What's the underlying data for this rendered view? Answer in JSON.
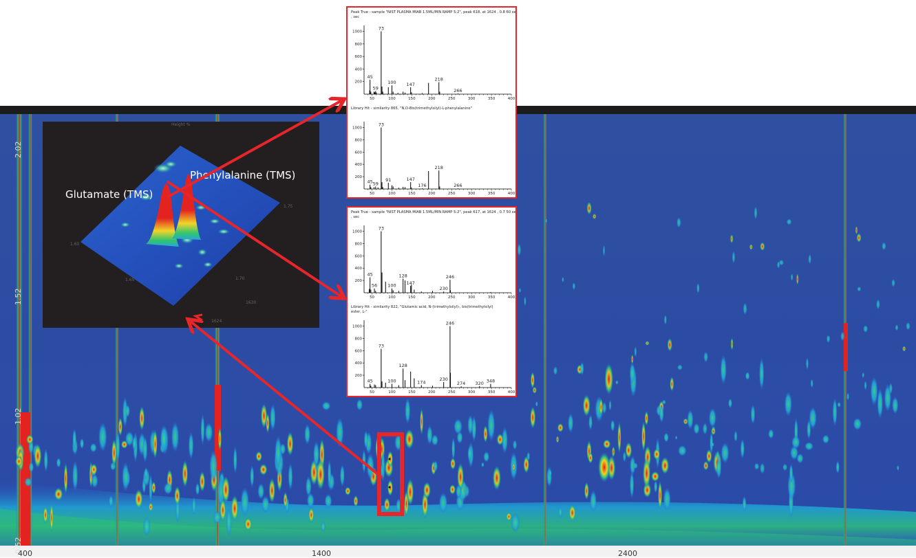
{
  "figure": {
    "label_glutamate": "Glutamate (TMS)",
    "label_phenylalanine": "Phenylalanine (TMS)",
    "y_axis_ticks": [
      "0.52",
      "1.02",
      "1.52",
      "2.02"
    ],
    "x_axis_ticks": [
      "400",
      "1400",
      "2400"
    ],
    "inset_3d_faint_labels": [
      "Height %",
      "1.75",
      "1.60",
      "1.65",
      "1.70",
      "1624",
      "1630"
    ]
  },
  "chart_data": [
    {
      "type": "bar",
      "panel": "phenylalanine_peak_true",
      "title": "Peak True - sample \"NIST PLASMA MIAB 1.5ML/MIN RAMP 5:2\", peak 618, at 1624 , 0.8 60 sec , sec",
      "x_ticks": [
        "50",
        "100",
        "150",
        "200",
        "250",
        "300",
        "350",
        "400"
      ],
      "y_ticks": [
        "200",
        "400",
        "600",
        "800",
        "1000"
      ],
      "xlim": [
        30,
        400
      ],
      "ylim": [
        0,
        1050
      ],
      "x": [
        44,
        45,
        47,
        55,
        57,
        59,
        61,
        73,
        75,
        77,
        91,
        100,
        103,
        115,
        128,
        133,
        147,
        149,
        176,
        192,
        218,
        220,
        266
      ],
      "values": [
        60,
        230,
        40,
        40,
        30,
        50,
        25,
        1000,
        120,
        40,
        110,
        140,
        40,
        20,
        40,
        25,
        110,
        30,
        15,
        180,
        190,
        40,
        10
      ],
      "peak_labels": [
        {
          "x": 45,
          "label": "45"
        },
        {
          "x": 59,
          "label": "59"
        },
        {
          "x": 73,
          "label": "73"
        },
        {
          "x": 100,
          "label": "100"
        },
        {
          "x": 147,
          "label": "147"
        },
        {
          "x": 218,
          "label": "218"
        },
        {
          "x": 266,
          "label": "266"
        }
      ]
    },
    {
      "type": "bar",
      "panel": "phenylalanine_library_hit",
      "title": "Library Hit - similarity 865, \"N,O-Bis(trimethylsilyl)-L-phenylalanine\"",
      "x_ticks": [
        "50",
        "100",
        "150",
        "200",
        "250",
        "300",
        "350",
        "400"
      ],
      "y_ticks": [
        "200",
        "400",
        "600",
        "800",
        "1000"
      ],
      "xlim": [
        30,
        400
      ],
      "ylim": [
        0,
        1050
      ],
      "x": [
        45,
        47,
        55,
        59,
        65,
        73,
        75,
        77,
        91,
        100,
        103,
        117,
        128,
        133,
        147,
        149,
        176,
        192,
        218,
        220,
        266
      ],
      "values": [
        70,
        30,
        30,
        40,
        25,
        1000,
        110,
        30,
        100,
        60,
        40,
        20,
        35,
        30,
        110,
        25,
        10,
        290,
        300,
        40,
        10
      ],
      "peak_labels": [
        {
          "x": 45,
          "label": "45"
        },
        {
          "x": 59,
          "label": "59"
        },
        {
          "x": 73,
          "label": "73"
        },
        {
          "x": 91,
          "label": "91"
        },
        {
          "x": 147,
          "label": "147"
        },
        {
          "x": 176,
          "label": "176"
        },
        {
          "x": 218,
          "label": "218"
        },
        {
          "x": 266,
          "label": "266"
        }
      ]
    },
    {
      "type": "bar",
      "panel": "glutamate_peak_true",
      "title": "Peak True - sample \"NIST PLASMA MIAB 1.5ML/MIN RAMP 5:2\", peak 617, at 1624 , 0.7 50 sec , sec",
      "x_ticks": [
        "50",
        "100",
        "150",
        "200",
        "250",
        "300",
        "350",
        "400"
      ],
      "y_ticks": [
        "200",
        "400",
        "600",
        "800",
        "1000"
      ],
      "xlim": [
        30,
        400
      ],
      "ylim": [
        0,
        1050
      ],
      "x": [
        43,
        45,
        47,
        56,
        59,
        73,
        75,
        84,
        100,
        103,
        117,
        128,
        133,
        147,
        149,
        156,
        174,
        202,
        230,
        246,
        247,
        348
      ],
      "values": [
        60,
        250,
        50,
        70,
        30,
        1000,
        330,
        180,
        70,
        40,
        30,
        230,
        200,
        110,
        130,
        50,
        20,
        30,
        20,
        210,
        40,
        10
      ],
      "peak_labels": [
        {
          "x": 45,
          "label": "45"
        },
        {
          "x": 56,
          "label": "56"
        },
        {
          "x": 73,
          "label": "73"
        },
        {
          "x": 100,
          "label": "100"
        },
        {
          "x": 128,
          "label": "128"
        },
        {
          "x": 147,
          "label": "147"
        },
        {
          "x": 230,
          "label": "230"
        },
        {
          "x": 246,
          "label": "246"
        }
      ]
    },
    {
      "type": "bar",
      "panel": "glutamate_library_hit",
      "title": "Library Hit - similarity 822, \"Glutamic acid, N-(trimethylsilyl)-, bis(trimethylsilyl) ester, L-\"",
      "x_ticks": [
        "50",
        "100",
        "150",
        "200",
        "250",
        "300",
        "350",
        "400"
      ],
      "y_ticks": [
        "200",
        "400",
        "600",
        "800",
        "1000"
      ],
      "xlim": [
        30,
        400
      ],
      "ylim": [
        0,
        1050
      ],
      "x": [
        45,
        47,
        56,
        59,
        73,
        75,
        84,
        100,
        117,
        128,
        133,
        147,
        156,
        174,
        202,
        230,
        246,
        247,
        274,
        320,
        348
      ],
      "values": [
        60,
        30,
        50,
        40,
        630,
        100,
        80,
        60,
        40,
        310,
        120,
        260,
        150,
        40,
        30,
        90,
        1000,
        240,
        20,
        25,
        60
      ],
      "peak_labels": [
        {
          "x": 45,
          "label": "45"
        },
        {
          "x": 73,
          "label": "73"
        },
        {
          "x": 100,
          "label": "100"
        },
        {
          "x": 128,
          "label": "128"
        },
        {
          "x": 174,
          "label": "174"
        },
        {
          "x": 230,
          "label": "230"
        },
        {
          "x": 246,
          "label": "246"
        },
        {
          "x": 274,
          "label": "274"
        },
        {
          "x": 320,
          "label": "320"
        },
        {
          "x": 348,
          "label": "348"
        }
      ]
    }
  ]
}
